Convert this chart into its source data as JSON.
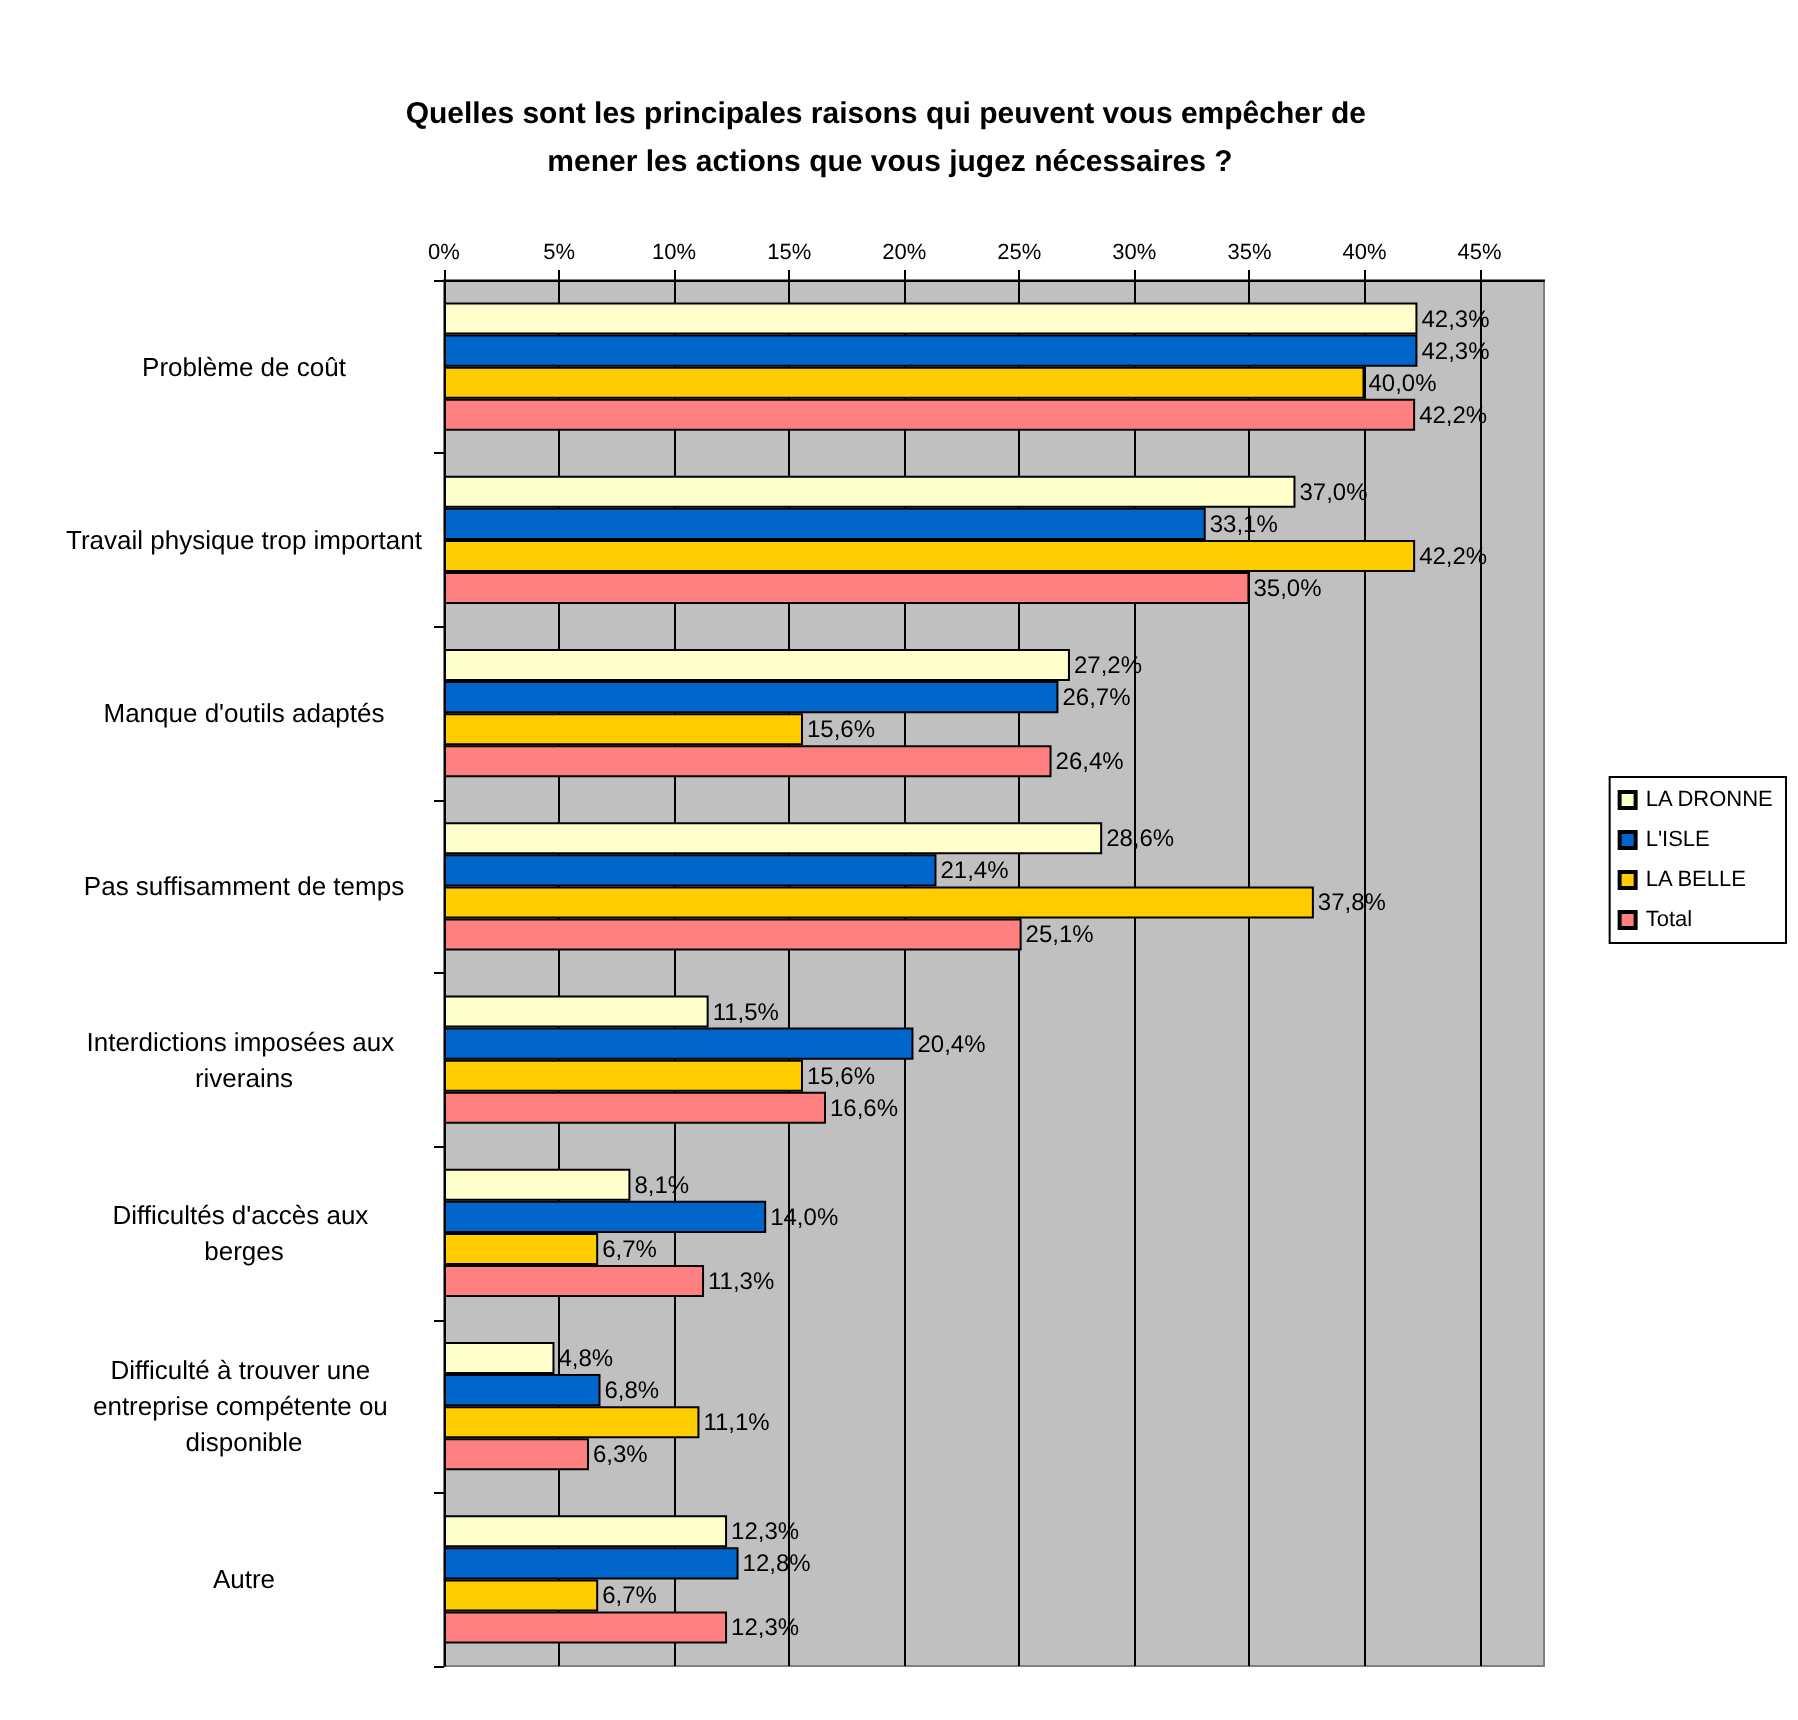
{
  "chart_data": {
    "type": "bar",
    "orientation": "horizontal",
    "title": "Quelles sont les principales raisons qui peuvent vous empêcher de mener les actions que vous jugez nécessaires ?",
    "categories": [
      "Problème de coût",
      "Travail physique trop important",
      "Manque d'outils adaptés",
      "Pas suffisamment de temps",
      "Interdictions imposées aux riverains",
      "Difficultés d'accès aux berges",
      "Difficulté à trouver une entreprise compétente ou disponible",
      "Autre"
    ],
    "series": [
      {
        "name": "LA DRONNE",
        "color": "#ffffcc",
        "values": [
          42.3,
          37.0,
          27.2,
          28.6,
          11.5,
          8.1,
          4.8,
          12.3
        ],
        "value_labels": [
          "42,3%",
          "37,0%",
          "27,2%",
          "28,6%",
          "11,5%",
          "8,1%",
          "4,8%",
          "12,3%"
        ]
      },
      {
        "name": "L'ISLE",
        "color": "#0066cc",
        "values": [
          42.3,
          33.1,
          26.7,
          21.4,
          20.4,
          14.0,
          6.8,
          12.8
        ],
        "value_labels": [
          "42,3%",
          "33,1%",
          "26,7%",
          "21,4%",
          "20,4%",
          "14,0%",
          "6,8%",
          "12,8%"
        ]
      },
      {
        "name": "LA BELLE",
        "color": "#ffcc00",
        "values": [
          40.0,
          42.2,
          15.6,
          37.8,
          15.6,
          6.7,
          11.1,
          6.7
        ],
        "value_labels": [
          "40,0%",
          "42,2%",
          "15,6%",
          "37,8%",
          "15,6%",
          "6,7%",
          "11,1%",
          "6,7%"
        ]
      },
      {
        "name": "Total",
        "color": "#ff8080",
        "values": [
          42.2,
          35.0,
          26.4,
          25.1,
          16.6,
          11.3,
          6.3,
          12.3
        ],
        "value_labels": [
          "42,2%",
          "35,0%",
          "26,4%",
          "25,1%",
          "16,6%",
          "11,3%",
          "6,3%",
          "12,3%"
        ]
      }
    ],
    "xlim": [
      0,
      47.8
    ],
    "xticks": [
      {
        "value": 0,
        "label": "0%"
      },
      {
        "value": 5,
        "label": "5%"
      },
      {
        "value": 10,
        "label": "10%"
      },
      {
        "value": 15,
        "label": "15%"
      },
      {
        "value": 20,
        "label": "20%"
      },
      {
        "value": 25,
        "label": "25%"
      },
      {
        "value": 30,
        "label": "30%"
      },
      {
        "value": 35,
        "label": "35%"
      },
      {
        "value": 40,
        "label": "40%"
      },
      {
        "value": 45,
        "label": "45%"
      }
    ],
    "grid": "x",
    "legend": "right"
  }
}
